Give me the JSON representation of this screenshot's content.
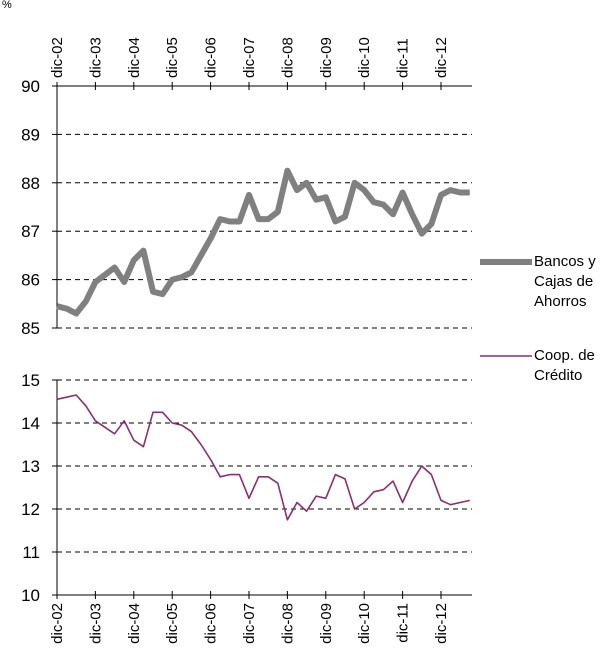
{
  "chart_data": [
    {
      "type": "line",
      "ylabel": "%",
      "categories": [
        "dic-02",
        null,
        null,
        null,
        "dic-03",
        null,
        null,
        null,
        "dic-04",
        null,
        null,
        null,
        "dic-05",
        null,
        null,
        null,
        "dic-06",
        null,
        null,
        null,
        "dic-07",
        null,
        null,
        null,
        "dic-08",
        null,
        null,
        null,
        "dic-09",
        null,
        null,
        null,
        "dic-10",
        null,
        null,
        null,
        "dic-11",
        null,
        null,
        null,
        "dic-12",
        null,
        null,
        null
      ],
      "series": [
        {
          "name": "Bancos y Cajas de Ahorros",
          "color": "#808080",
          "values": [
            85.45,
            85.4,
            85.3,
            85.55,
            85.95,
            86.1,
            86.25,
            85.95,
            86.4,
            86.6,
            85.75,
            85.7,
            86.0,
            86.05,
            86.15,
            86.5,
            86.85,
            87.25,
            87.2,
            87.2,
            87.75,
            87.25,
            87.25,
            87.4,
            88.25,
            87.85,
            88.0,
            87.65,
            87.7,
            87.2,
            87.3,
            88.0,
            87.85,
            87.6,
            87.55,
            87.35,
            87.8,
            87.35,
            86.95,
            87.15,
            87.75,
            87.85,
            87.8,
            87.8
          ]
        }
      ],
      "ylim": [
        85,
        90
      ],
      "yticks": [
        85,
        86,
        87,
        88,
        89,
        90
      ],
      "grid": true
    },
    {
      "type": "line",
      "categories": [
        "dic-02",
        null,
        null,
        null,
        "dic-03",
        null,
        null,
        null,
        "dic-04",
        null,
        null,
        null,
        "dic-05",
        null,
        null,
        null,
        "dic-06",
        null,
        null,
        null,
        "dic-07",
        null,
        null,
        null,
        "dic-08",
        null,
        null,
        null,
        "dic-09",
        null,
        null,
        null,
        "dic-10",
        null,
        null,
        null,
        "dic-11",
        null,
        null,
        null,
        "dic-12",
        null,
        null,
        null
      ],
      "series": [
        {
          "name": "Coop. de Crédito",
          "color": "#8b2f6e",
          "values": [
            14.55,
            14.6,
            14.65,
            14.4,
            14.05,
            13.9,
            13.75,
            14.05,
            13.6,
            13.45,
            14.25,
            14.25,
            14.0,
            13.95,
            13.8,
            13.5,
            13.15,
            12.75,
            12.8,
            12.8,
            12.25,
            12.75,
            12.75,
            12.6,
            11.75,
            12.15,
            11.95,
            12.3,
            12.25,
            12.8,
            12.7,
            12.0,
            12.15,
            12.4,
            12.45,
            12.65,
            12.15,
            12.65,
            13.0,
            12.8,
            12.2,
            12.1,
            12.15,
            12.2
          ]
        }
      ],
      "ylim": [
        10,
        15
      ],
      "yticks": [
        10,
        11,
        12,
        13,
        14,
        15
      ],
      "grid": true
    }
  ]
}
